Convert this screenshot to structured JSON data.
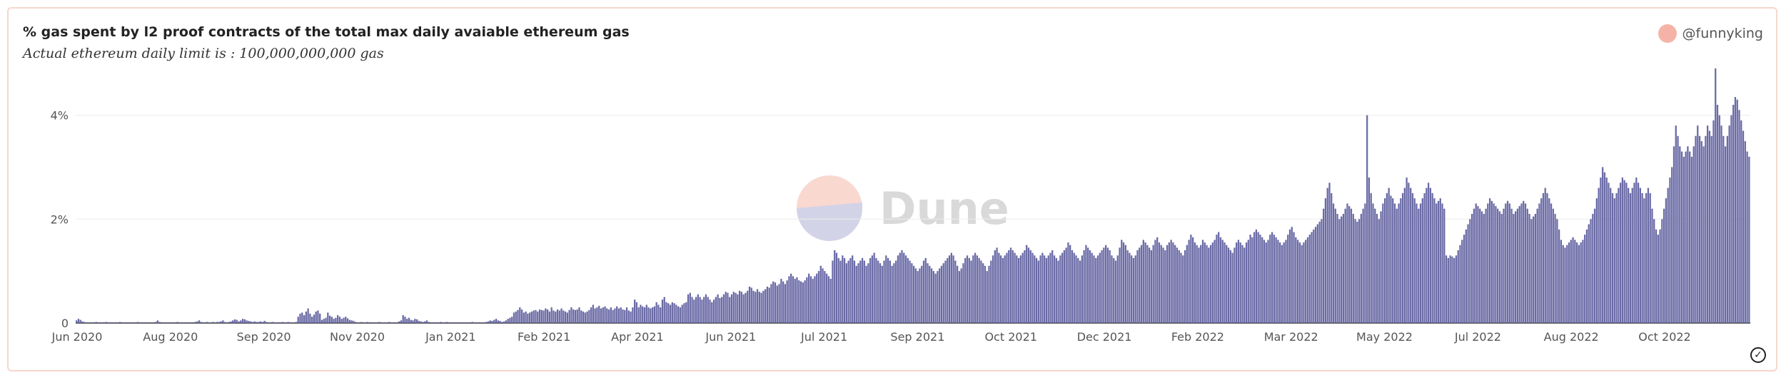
{
  "header": {
    "title": "% gas spent by l2 proof contracts of the total max daily avaiable ethereum gas",
    "subtitle": "Actual ethereum daily limit is : 100,000,000,000 gas",
    "author": "@funnyking"
  },
  "watermark": {
    "text": "Dune"
  },
  "colors": {
    "bar": "#6a6aa6",
    "grid": "#ececec",
    "card_border": "#f7d6cb",
    "avatar": "#f5b3a7"
  },
  "chart_data": {
    "type": "bar",
    "title": "% gas spent by l2 proof contracts of the total max daily avaiable ethereum gas",
    "xlabel": "",
    "ylabel": "",
    "ylim": [
      0,
      4.9
    ],
    "y_ticks": [
      {
        "value": 0,
        "label": "0"
      },
      {
        "value": 2,
        "label": "2%"
      },
      {
        "value": 4,
        "label": "4%"
      }
    ],
    "x_ticks": [
      "Jun 2020",
      "Aug 2020",
      "Sep 2020",
      "Nov 2020",
      "Jan 2021",
      "Feb 2021",
      "Apr 2021",
      "Jun 2021",
      "Jul 2021",
      "Sep 2021",
      "Oct 2021",
      "Dec 2021",
      "Feb 2022",
      "Mar 2022",
      "May 2022",
      "Jul 2022",
      "Aug 2022",
      "Oct 2022"
    ],
    "grid": true,
    "series": [
      {
        "values": [
          0.05,
          0.08,
          0.06,
          0.03,
          0.02,
          0.01,
          0.01,
          0.01,
          0.01,
          0.01,
          0.02,
          0.01,
          0.01,
          0.01,
          0.01,
          0.02,
          0.01,
          0.01,
          0.01,
          0.01,
          0.01,
          0.01,
          0.02,
          0.01,
          0.01,
          0.01,
          0.01,
          0.01,
          0.01,
          0.01,
          0.01,
          0.02,
          0.01,
          0.01,
          0.01,
          0.01,
          0.01,
          0.01,
          0.01,
          0.01,
          0.02,
          0.05,
          0.02,
          0.01,
          0.01,
          0.01,
          0.01,
          0.01,
          0.01,
          0.01,
          0.01,
          0.02,
          0.01,
          0.01,
          0.01,
          0.01,
          0.01,
          0.01,
          0.01,
          0.01,
          0.02,
          0.03,
          0.05,
          0.02,
          0.01,
          0.01,
          0.02,
          0.01,
          0.01,
          0.02,
          0.01,
          0.02,
          0.02,
          0.03,
          0.05,
          0.02,
          0.01,
          0.02,
          0.03,
          0.05,
          0.07,
          0.06,
          0.03,
          0.05,
          0.08,
          0.07,
          0.05,
          0.04,
          0.03,
          0.02,
          0.03,
          0.02,
          0.02,
          0.03,
          0.02,
          0.04,
          0.02,
          0.01,
          0.01,
          0.02,
          0.01,
          0.01,
          0.01,
          0.01,
          0.02,
          0.01,
          0.01,
          0.02,
          0.01,
          0.01,
          0.01,
          0.02,
          0.12,
          0.18,
          0.2,
          0.15,
          0.22,
          0.28,
          0.18,
          0.12,
          0.16,
          0.22,
          0.24,
          0.18,
          0.06,
          0.08,
          0.1,
          0.2,
          0.14,
          0.12,
          0.08,
          0.1,
          0.15,
          0.12,
          0.08,
          0.1,
          0.12,
          0.09,
          0.06,
          0.05,
          0.04,
          0.02,
          0.01,
          0.01,
          0.02,
          0.01,
          0.01,
          0.02,
          0.01,
          0.01,
          0.01,
          0.01,
          0.01,
          0.02,
          0.01,
          0.01,
          0.01,
          0.01,
          0.02,
          0.01,
          0.01,
          0.01,
          0.01,
          0.03,
          0.05,
          0.15,
          0.12,
          0.08,
          0.1,
          0.06,
          0.05,
          0.08,
          0.07,
          0.04,
          0.03,
          0.02,
          0.03,
          0.05,
          0.02,
          0.01,
          0.01,
          0.01,
          0.01,
          0.01,
          0.02,
          0.01,
          0.01,
          0.02,
          0.01,
          0.01,
          0.01,
          0.01,
          0.01,
          0.01,
          0.01,
          0.01,
          0.01,
          0.01,
          0.01,
          0.01,
          0.02,
          0.01,
          0.01,
          0.01,
          0.01,
          0.01,
          0.01,
          0.02,
          0.03,
          0.05,
          0.04,
          0.06,
          0.08,
          0.05,
          0.04,
          0.02,
          0.03,
          0.05,
          0.08,
          0.1,
          0.12,
          0.2,
          0.22,
          0.25,
          0.3,
          0.26,
          0.2,
          0.22,
          0.18,
          0.2,
          0.22,
          0.24,
          0.25,
          0.22,
          0.26,
          0.25,
          0.24,
          0.28,
          0.26,
          0.22,
          0.3,
          0.24,
          0.22,
          0.26,
          0.24,
          0.28,
          0.24,
          0.22,
          0.2,
          0.25,
          0.3,
          0.26,
          0.25,
          0.26,
          0.3,
          0.24,
          0.22,
          0.2,
          0.22,
          0.25,
          0.3,
          0.35,
          0.28,
          0.3,
          0.33,
          0.28,
          0.3,
          0.32,
          0.28,
          0.26,
          0.3,
          0.25,
          0.28,
          0.32,
          0.28,
          0.3,
          0.26,
          0.25,
          0.3,
          0.24,
          0.22,
          0.3,
          0.45,
          0.4,
          0.3,
          0.35,
          0.32,
          0.3,
          0.35,
          0.3,
          0.28,
          0.3,
          0.32,
          0.4,
          0.35,
          0.3,
          0.45,
          0.5,
          0.4,
          0.38,
          0.35,
          0.4,
          0.38,
          0.35,
          0.32,
          0.3,
          0.35,
          0.38,
          0.4,
          0.55,
          0.58,
          0.5,
          0.45,
          0.5,
          0.55,
          0.5,
          0.45,
          0.5,
          0.55,
          0.5,
          0.45,
          0.4,
          0.45,
          0.5,
          0.55,
          0.48,
          0.5,
          0.55,
          0.6,
          0.58,
          0.5,
          0.55,
          0.6,
          0.58,
          0.55,
          0.62,
          0.6,
          0.55,
          0.58,
          0.62,
          0.7,
          0.68,
          0.62,
          0.6,
          0.65,
          0.6,
          0.58,
          0.62,
          0.65,
          0.7,
          0.68,
          0.75,
          0.8,
          0.78,
          0.72,
          0.75,
          0.85,
          0.8,
          0.75,
          0.82,
          0.9,
          0.95,
          0.9,
          0.85,
          0.88,
          0.82,
          0.8,
          0.78,
          0.82,
          0.88,
          0.95,
          0.9,
          0.85,
          0.9,
          0.95,
          1.0,
          1.1,
          1.05,
          1.0,
          0.95,
          0.9,
          0.85,
          1.2,
          1.4,
          1.35,
          1.25,
          1.2,
          1.3,
          1.25,
          1.15,
          1.2,
          1.25,
          1.3,
          1.2,
          1.1,
          1.15,
          1.2,
          1.25,
          1.2,
          1.1,
          1.15,
          1.25,
          1.3,
          1.35,
          1.25,
          1.2,
          1.15,
          1.1,
          1.2,
          1.3,
          1.25,
          1.2,
          1.1,
          1.15,
          1.2,
          1.3,
          1.35,
          1.4,
          1.35,
          1.3,
          1.25,
          1.2,
          1.15,
          1.1,
          1.05,
          1.0,
          1.05,
          1.1,
          1.2,
          1.25,
          1.15,
          1.1,
          1.05,
          1.0,
          0.95,
          1.0,
          1.05,
          1.1,
          1.15,
          1.2,
          1.25,
          1.3,
          1.35,
          1.3,
          1.2,
          1.1,
          1.0,
          1.05,
          1.15,
          1.25,
          1.3,
          1.25,
          1.2,
          1.3,
          1.35,
          1.3,
          1.25,
          1.2,
          1.15,
          1.1,
          1.0,
          1.1,
          1.2,
          1.3,
          1.4,
          1.45,
          1.35,
          1.3,
          1.25,
          1.3,
          1.35,
          1.4,
          1.45,
          1.4,
          1.35,
          1.3,
          1.25,
          1.3,
          1.35,
          1.4,
          1.5,
          1.45,
          1.4,
          1.35,
          1.3,
          1.25,
          1.2,
          1.3,
          1.35,
          1.3,
          1.25,
          1.3,
          1.35,
          1.4,
          1.3,
          1.25,
          1.2,
          1.3,
          1.35,
          1.4,
          1.45,
          1.55,
          1.5,
          1.4,
          1.35,
          1.3,
          1.25,
          1.2,
          1.3,
          1.4,
          1.5,
          1.45,
          1.4,
          1.35,
          1.3,
          1.25,
          1.3,
          1.35,
          1.4,
          1.45,
          1.5,
          1.45,
          1.4,
          1.3,
          1.25,
          1.2,
          1.3,
          1.45,
          1.6,
          1.55,
          1.5,
          1.4,
          1.35,
          1.3,
          1.25,
          1.3,
          1.4,
          1.45,
          1.5,
          1.6,
          1.55,
          1.5,
          1.45,
          1.4,
          1.5,
          1.6,
          1.65,
          1.55,
          1.5,
          1.45,
          1.4,
          1.5,
          1.55,
          1.6,
          1.55,
          1.5,
          1.45,
          1.4,
          1.35,
          1.3,
          1.4,
          1.5,
          1.6,
          1.7,
          1.65,
          1.55,
          1.5,
          1.45,
          1.5,
          1.6,
          1.55,
          1.5,
          1.45,
          1.5,
          1.55,
          1.6,
          1.7,
          1.75,
          1.65,
          1.6,
          1.55,
          1.5,
          1.45,
          1.4,
          1.35,
          1.45,
          1.55,
          1.6,
          1.55,
          1.5,
          1.45,
          1.55,
          1.6,
          1.7,
          1.65,
          1.75,
          1.8,
          1.75,
          1.7,
          1.65,
          1.6,
          1.55,
          1.6,
          1.7,
          1.75,
          1.7,
          1.65,
          1.6,
          1.55,
          1.5,
          1.55,
          1.6,
          1.7,
          1.8,
          1.85,
          1.75,
          1.65,
          1.6,
          1.55,
          1.5,
          1.55,
          1.6,
          1.65,
          1.7,
          1.75,
          1.8,
          1.85,
          1.9,
          1.95,
          2.0,
          2.2,
          2.4,
          2.6,
          2.7,
          2.5,
          2.3,
          2.2,
          2.1,
          2.0,
          2.05,
          2.1,
          2.2,
          2.3,
          2.25,
          2.2,
          2.1,
          2.0,
          1.95,
          2.0,
          2.1,
          2.2,
          2.3,
          4.0,
          2.8,
          2.5,
          2.3,
          2.2,
          2.1,
          2.0,
          2.15,
          2.3,
          2.4,
          2.5,
          2.6,
          2.45,
          2.4,
          2.3,
          2.2,
          2.3,
          2.4,
          2.5,
          2.6,
          2.8,
          2.7,
          2.6,
          2.5,
          2.4,
          2.3,
          2.2,
          2.3,
          2.4,
          2.5,
          2.6,
          2.7,
          2.6,
          2.5,
          2.4,
          2.3,
          2.35,
          2.4,
          2.3,
          2.2,
          1.3,
          1.25,
          1.3,
          1.28,
          1.25,
          1.3,
          1.4,
          1.5,
          1.6,
          1.7,
          1.8,
          1.9,
          2.0,
          2.1,
          2.2,
          2.3,
          2.25,
          2.2,
          2.15,
          2.1,
          2.2,
          2.3,
          2.4,
          2.35,
          2.3,
          2.25,
          2.2,
          2.15,
          2.1,
          2.2,
          2.3,
          2.35,
          2.3,
          2.2,
          2.1,
          2.15,
          2.2,
          2.25,
          2.3,
          2.35,
          2.3,
          2.2,
          2.1,
          2.0,
          2.05,
          2.1,
          2.2,
          2.3,
          2.4,
          2.5,
          2.6,
          2.5,
          2.4,
          2.3,
          2.2,
          2.1,
          2.0,
          1.8,
          1.6,
          1.5,
          1.45,
          1.5,
          1.55,
          1.6,
          1.65,
          1.6,
          1.55,
          1.5,
          1.55,
          1.6,
          1.7,
          1.8,
          1.9,
          2.0,
          2.1,
          2.2,
          2.4,
          2.6,
          2.8,
          3.0,
          2.9,
          2.8,
          2.7,
          2.6,
          2.5,
          2.4,
          2.5,
          2.6,
          2.7,
          2.8,
          2.75,
          2.7,
          2.6,
          2.5,
          2.6,
          2.7,
          2.8,
          2.7,
          2.6,
          2.5,
          2.4,
          2.5,
          2.6,
          2.5,
          2.2,
          2.0,
          1.8,
          1.7,
          1.8,
          2.0,
          2.2,
          2.4,
          2.6,
          2.8,
          3.0,
          3.4,
          3.8,
          3.6,
          3.4,
          3.3,
          3.2,
          3.3,
          3.4,
          3.3,
          3.2,
          3.4,
          3.6,
          3.8,
          3.6,
          3.5,
          3.4,
          3.6,
          3.8,
          3.7,
          3.6,
          3.9,
          4.9,
          4.2,
          4.0,
          3.8,
          3.6,
          3.4,
          3.6,
          3.8,
          4.0,
          4.2,
          4.35,
          4.3,
          4.1,
          3.9,
          3.7,
          3.5,
          3.3,
          3.2
        ]
      }
    ]
  }
}
